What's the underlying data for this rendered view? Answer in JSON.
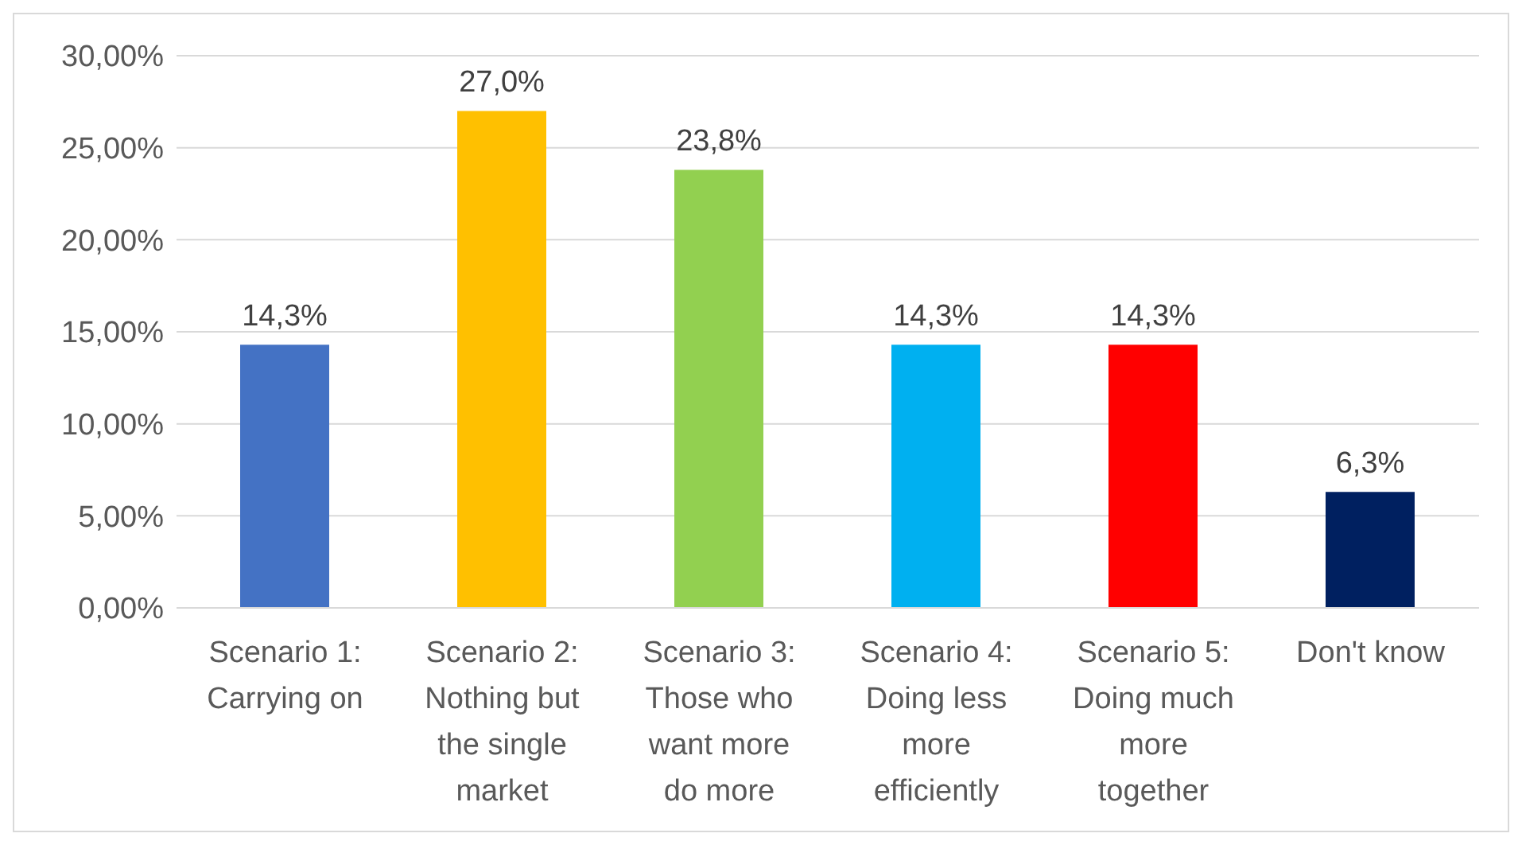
{
  "chart_data": {
    "type": "bar",
    "categories": [
      "Scenario 1: Carrying on",
      "Scenario 2: Nothing but the single market",
      "Scenario 3: Those who want more do more",
      "Scenario 4: Doing less more efficiently",
      "Scenario 5: Doing much more together",
      "Don't know"
    ],
    "values": [
      14.3,
      27.0,
      23.8,
      14.3,
      14.3,
      6.3
    ],
    "value_labels": [
      "14,3%",
      "27,0%",
      "23,8%",
      "14,3%",
      "14,3%",
      "6,3%"
    ],
    "colors": [
      "#4472c4",
      "#ffc000",
      "#92d050",
      "#00b0f0",
      "#ff0000",
      "#002060"
    ],
    "ylim": [
      0,
      30
    ],
    "yticks": [
      {
        "value": 0,
        "label": "0,00%"
      },
      {
        "value": 5,
        "label": "5,00%"
      },
      {
        "value": 10,
        "label": "10,00%"
      },
      {
        "value": 15,
        "label": "15,00%"
      },
      {
        "value": 20,
        "label": "20,00%"
      },
      {
        "value": 25,
        "label": "25,00%"
      },
      {
        "value": 30,
        "label": "30,00%"
      }
    ],
    "grid": "y",
    "legend": false
  }
}
